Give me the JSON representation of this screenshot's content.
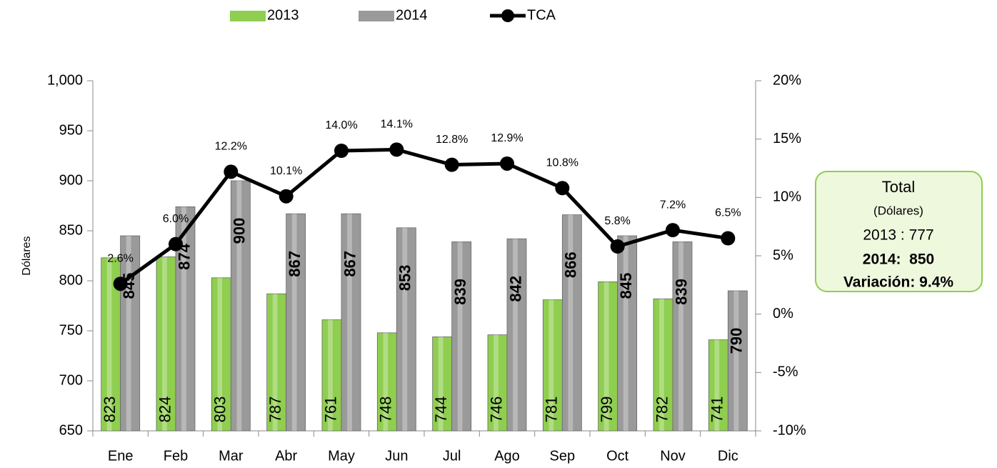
{
  "chart_data": {
    "type": "bar_line",
    "y_label": "Dólares",
    "categories": [
      "Ene",
      "Feb",
      "Mar",
      "Abr",
      "May",
      "Jun",
      "Jul",
      "Ago",
      "Sep",
      "Oct",
      "Nov",
      "Dic"
    ],
    "series": [
      {
        "name": "2013",
        "color": "#8fce4f",
        "values": [
          823,
          824,
          803,
          787,
          761,
          748,
          744,
          746,
          781,
          799,
          782,
          741
        ]
      },
      {
        "name": "2014",
        "color": "#9a9a9a",
        "values": [
          845,
          874,
          900,
          867,
          867,
          853,
          839,
          842,
          866,
          845,
          839,
          790
        ]
      },
      {
        "name": "TCA",
        "color": "#000000",
        "axis": "y2",
        "type": "line",
        "values": [
          2.6,
          6.0,
          12.2,
          10.1,
          14.0,
          14.1,
          12.8,
          12.9,
          10.8,
          5.8,
          7.2,
          6.5
        ],
        "value_labels": [
          "2.6%",
          "6.0%",
          "12.2%",
          "10.1%",
          "14.0%",
          "14.1%",
          "12.8%",
          "12.9%",
          "10.8%",
          "5.8%",
          "7.2%",
          "6.5%"
        ]
      }
    ],
    "ylim": [
      650,
      1000
    ],
    "yticks": [
      650,
      700,
      750,
      800,
      850,
      900,
      950,
      {
        "value": 1000,
        "label": "1,000"
      }
    ],
    "y2lim": [
      -10,
      20
    ],
    "y2ticks": [
      {
        "value": -10,
        "label": "-10%"
      },
      {
        "value": -5,
        "label": "-5%"
      },
      {
        "value": 0,
        "label": "0%"
      },
      {
        "value": 5,
        "label": "5%"
      },
      {
        "value": 10,
        "label": "10%"
      },
      {
        "value": 15,
        "label": "15%"
      },
      {
        "value": 20,
        "label": "20%"
      }
    ],
    "grid": false,
    "legend": "top",
    "annotation": {
      "title": "Total",
      "subtitle": "(Dólares)",
      "lines": [
        "2013 : 777",
        "2014:  850",
        "Variación: 9.4%"
      ]
    }
  }
}
